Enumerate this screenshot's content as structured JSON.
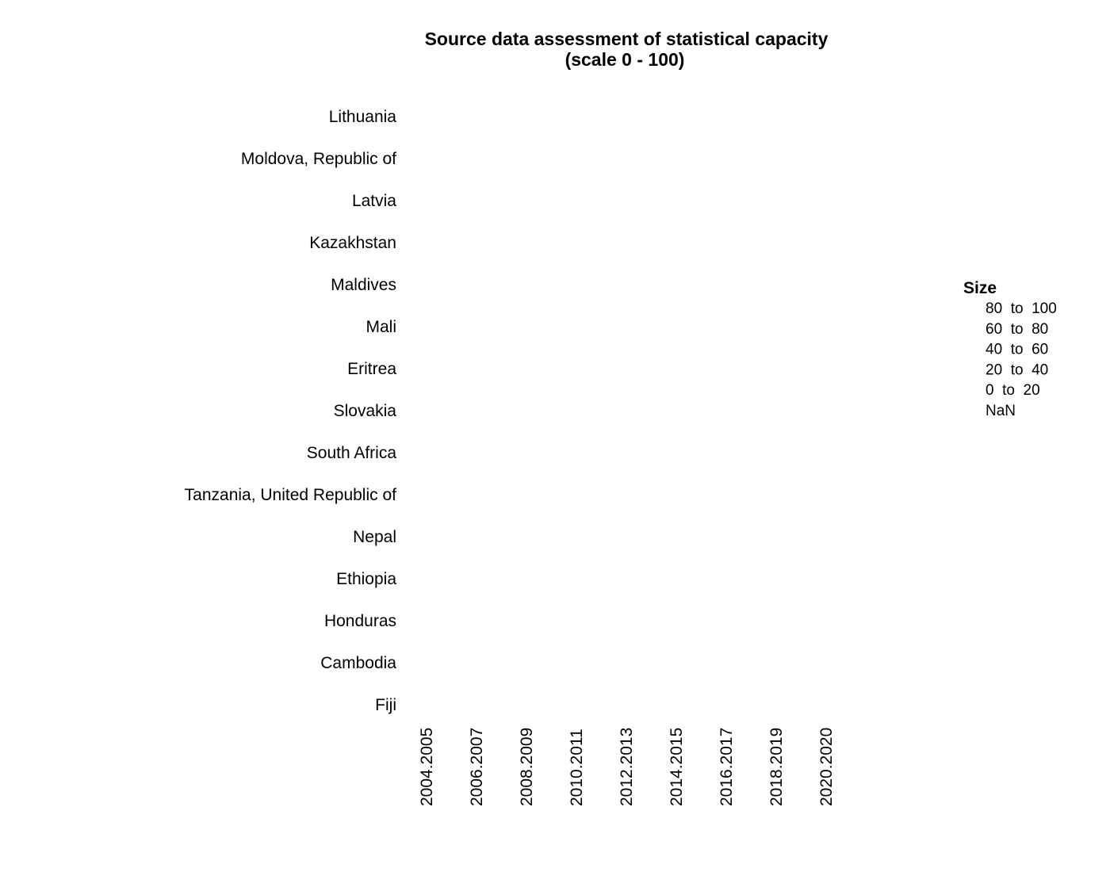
{
  "chart_data": {
    "type": "scatter",
    "title": "Source data assessment of statistical capacity",
    "subtitle": "(scale 0 - 100)",
    "categories_y": [
      "Lithuania",
      "Moldova, Republic of",
      "Latvia",
      "Kazakhstan",
      "Maldives",
      "Mali",
      "Eritrea",
      "Slovakia",
      "South Africa",
      "Tanzania, United Republic of",
      "Nepal",
      "Ethiopia",
      "Honduras",
      "Cambodia",
      "Fiji"
    ],
    "categories_x": [
      "2004.2005",
      "2006.2007",
      "2008.2009",
      "2010.2011",
      "2012.2013",
      "2014.2015",
      "2016.2017",
      "2018.2019",
      "2020.2020"
    ],
    "points": [],
    "legend": {
      "title": "Size",
      "position": "right",
      "entries": [
        "80  to  100",
        "60  to  80",
        "40  to  60",
        "20  to  40",
        "0  to  20",
        "NaN"
      ]
    },
    "grid": false
  }
}
